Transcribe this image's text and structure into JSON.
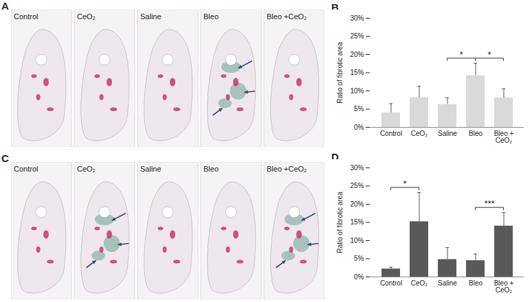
{
  "chart_data": [
    {
      "type": "bar",
      "panel": "B",
      "ylabel": "Ratio of fibrotic area",
      "categories": [
        "Control",
        "CeO₂",
        "Saline",
        "Bleo",
        "Bleo + CeO₂"
      ],
      "values": [
        4.0,
        8.2,
        6.3,
        14.2,
        8.1
      ],
      "error": [
        2.5,
        3.1,
        1.8,
        3.4,
        2.5
      ],
      "color": "#d9d9d9",
      "ylim": [
        0,
        30
      ],
      "yticks": [
        {
          "value": 0,
          "label": "0%"
        },
        {
          "value": 5,
          "label": "5%"
        },
        {
          "value": 10,
          "label": "10%"
        },
        {
          "value": 15,
          "label": "15%"
        },
        {
          "value": 20,
          "label": "20%"
        },
        {
          "value": 25,
          "label": "25%"
        },
        {
          "value": 30,
          "label": "30%"
        }
      ],
      "significance": [
        {
          "from": "Saline",
          "to": "Bleo",
          "label": "*"
        },
        {
          "from": "Bleo",
          "to": "Bleo + CeO₂",
          "label": "*"
        }
      ]
    },
    {
      "type": "bar",
      "panel": "D",
      "ylabel": "Ratio of fibrotic area",
      "categories": [
        "Control",
        "CeO₂",
        "Saline",
        "Bleo",
        "Bleo + CeO₂"
      ],
      "values": [
        2.2,
        15.2,
        4.8,
        4.5,
        14.0
      ],
      "error": [
        0.5,
        8.0,
        3.3,
        1.8,
        3.7
      ],
      "color": "#595959",
      "ylim": [
        0,
        30
      ],
      "yticks": [
        {
          "value": 0,
          "label": "0%"
        },
        {
          "value": 5,
          "label": "5%"
        },
        {
          "value": 10,
          "label": "10%"
        },
        {
          "value": 15,
          "label": "15%"
        },
        {
          "value": 20,
          "label": "20%"
        },
        {
          "value": 25,
          "label": "25%"
        },
        {
          "value": 30,
          "label": "30%"
        }
      ],
      "significance": [
        {
          "from": "Control",
          "to": "CeO₂",
          "label": "*"
        },
        {
          "from": "Bleo",
          "to": "Bleo + CeO₂",
          "label": "***"
        }
      ]
    }
  ],
  "image_panels": [
    {
      "panel": "A",
      "labels": [
        "Control",
        "CeO₂",
        "Saline",
        "Bleo",
        "Bleo +CeO₂"
      ]
    },
    {
      "panel": "C",
      "labels": [
        "Control",
        "CeO₂",
        "Saline",
        "Bleo",
        "Bleo +CeO₂"
      ]
    }
  ]
}
